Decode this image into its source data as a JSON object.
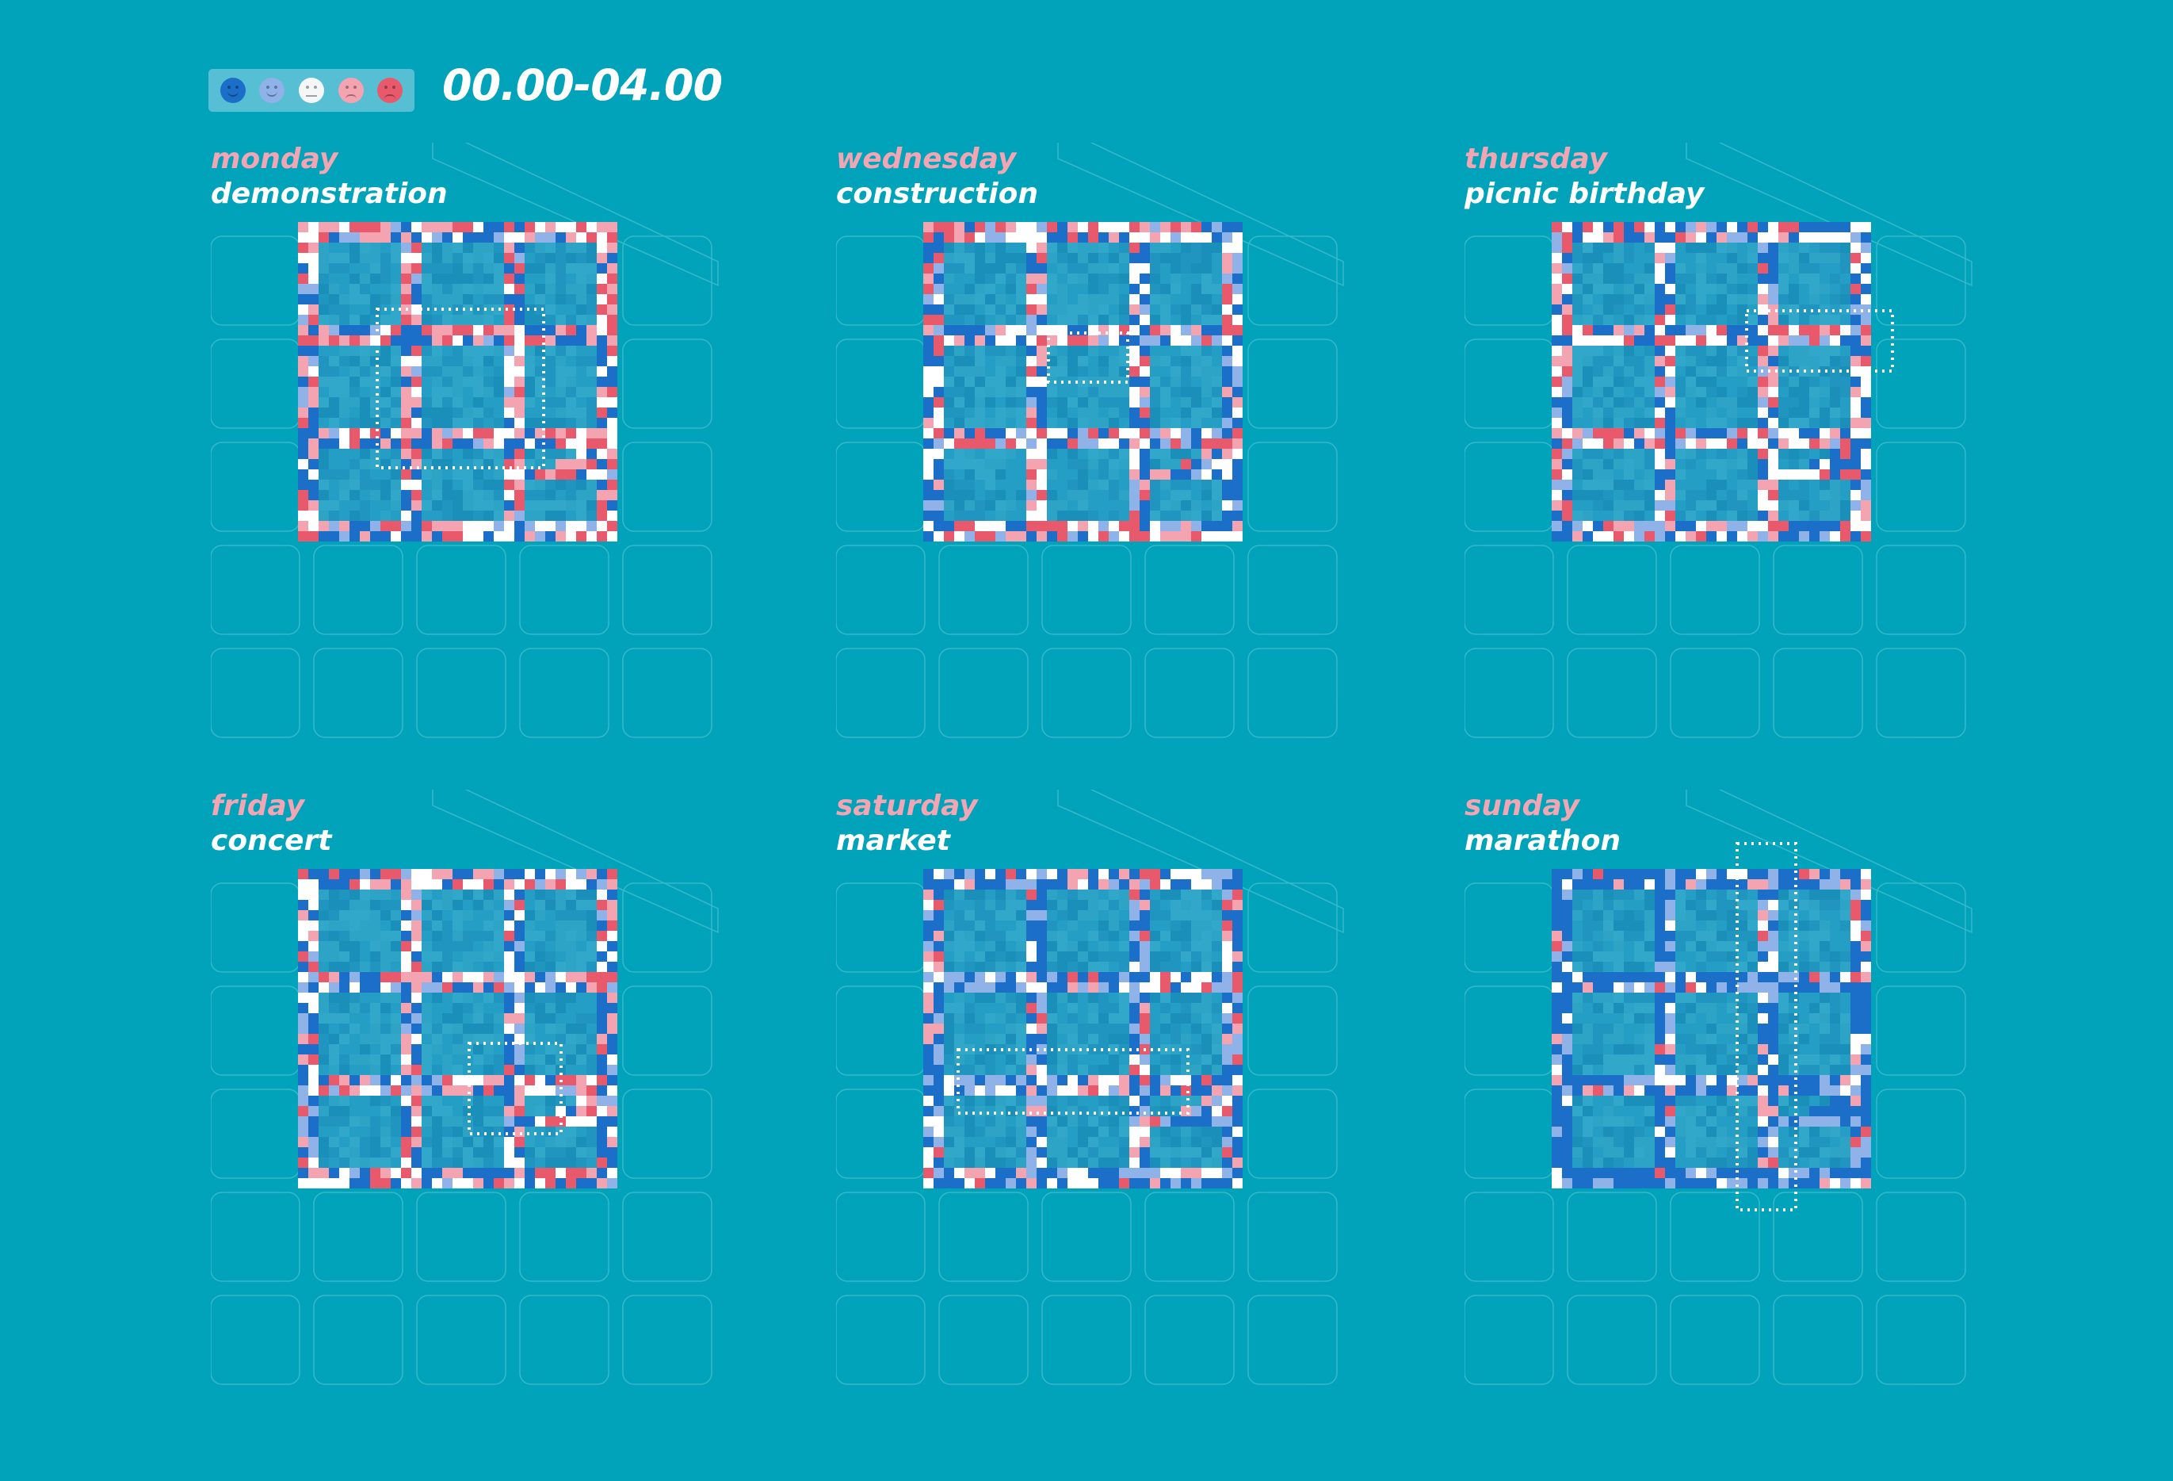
{
  "legend": {
    "moods": [
      {
        "name": "very-happy-icon",
        "color": "#1b6fc8"
      },
      {
        "name": "happy-icon",
        "color": "#8fb2e8"
      },
      {
        "name": "neutral-icon",
        "color": "#f4f6f8"
      },
      {
        "name": "unhappy-icon",
        "color": "#f4a3b0"
      },
      {
        "name": "very-unhappy-icon",
        "color": "#e85a6b"
      }
    ]
  },
  "time_range": "00.00-04.00",
  "palette": {
    "very_happy": "#1b6fc8",
    "happy": "#8fb2e8",
    "neutral": "#ffffff",
    "unhappy": "#f4a3b0",
    "very_unhappy": "#e85a6b",
    "background": "#00a3b9",
    "block": "#2b9dc7"
  },
  "panels": [
    {
      "id": "monday",
      "day": "monday",
      "event": "demonstration",
      "mood_bias": "unhappy"
    },
    {
      "id": "wednesday",
      "day": "wednesday",
      "event": "construction",
      "mood_bias": "mixed"
    },
    {
      "id": "thursday",
      "day": "thursday",
      "event": "picnic birthday",
      "mood_bias": "mixed"
    },
    {
      "id": "friday",
      "day": "friday",
      "event": "concert",
      "mood_bias": "mixed"
    },
    {
      "id": "saturday",
      "day": "saturday",
      "event": "market",
      "mood_bias": "happy"
    },
    {
      "id": "sunday",
      "day": "sunday",
      "event": "marathon",
      "mood_bias": "very_happy"
    }
  ]
}
